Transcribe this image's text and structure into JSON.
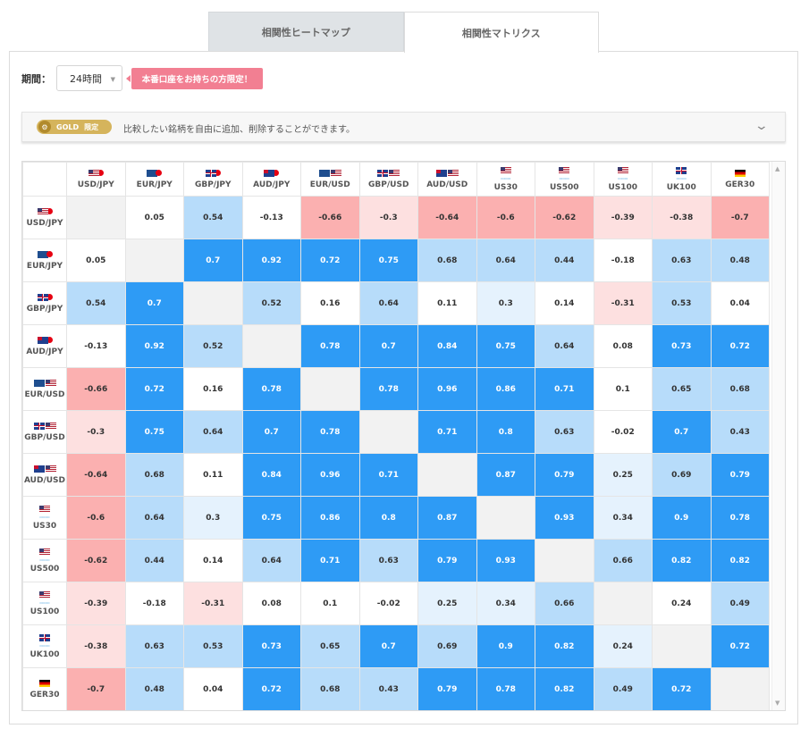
{
  "tabs": [
    {
      "label": "相関性ヒートマップ",
      "active": false
    },
    {
      "label": "相関性マトリクス",
      "active": true
    }
  ],
  "period": {
    "label": "期間：",
    "value": "24時間"
  },
  "promo": {
    "label": "本番口座をお持ちの方限定！"
  },
  "gold": {
    "badge": "GOLD",
    "badge_sub": "限定",
    "text": "比較したい銘柄を自由に追加、削除することができます。"
  },
  "colors": {
    "strong_positive": "#2e9bf5",
    "positive": "#b7dcfa",
    "weak_positive": "#e5f2fd",
    "neutral": "#ffffff",
    "weak_negative": "#fde0e0",
    "negative": "#fbb0b0",
    "self": "#f2f2f2",
    "promo": "#f27f92",
    "gold": "#d5b45c"
  },
  "matrix": {
    "symbols": [
      {
        "label": "USD/JPY",
        "flags": [
          "us",
          "jp"
        ]
      },
      {
        "label": "EUR/JPY",
        "flags": [
          "eu",
          "jp"
        ]
      },
      {
        "label": "GBP/JPY",
        "flags": [
          "gb",
          "jp"
        ]
      },
      {
        "label": "AUD/JPY",
        "flags": [
          "au",
          "jp"
        ]
      },
      {
        "label": "EUR/USD",
        "flags": [
          "eu",
          "us"
        ]
      },
      {
        "label": "GBP/USD",
        "flags": [
          "gb",
          "us"
        ]
      },
      {
        "label": "AUD/USD",
        "flags": [
          "au",
          "us"
        ]
      },
      {
        "label": "US30",
        "flags": [
          "us"
        ],
        "index": true
      },
      {
        "label": "US500",
        "flags": [
          "us"
        ],
        "index": true
      },
      {
        "label": "US100",
        "flags": [
          "us"
        ],
        "index": true
      },
      {
        "label": "UK100",
        "flags": [
          "gb"
        ],
        "index": true
      },
      {
        "label": "GER30",
        "flags": [
          "de"
        ],
        "index": false
      }
    ],
    "values": [
      [
        null,
        0.05,
        0.54,
        -0.13,
        -0.66,
        -0.3,
        -0.64,
        -0.6,
        -0.62,
        -0.39,
        -0.38,
        -0.7
      ],
      [
        0.05,
        null,
        0.7,
        0.92,
        0.72,
        0.75,
        0.68,
        0.64,
        0.44,
        -0.18,
        0.63,
        0.48
      ],
      [
        0.54,
        0.7,
        null,
        0.52,
        0.16,
        0.64,
        0.11,
        0.3,
        0.14,
        -0.31,
        0.53,
        0.04
      ],
      [
        -0.13,
        0.92,
        0.52,
        null,
        0.78,
        0.7,
        0.84,
        0.75,
        0.64,
        0.08,
        0.73,
        0.72
      ],
      [
        -0.66,
        0.72,
        0.16,
        0.78,
        null,
        0.78,
        0.96,
        0.86,
        0.71,
        0.1,
        0.65,
        0.68
      ],
      [
        -0.3,
        0.75,
        0.64,
        0.7,
        0.78,
        null,
        0.71,
        0.8,
        0.63,
        -0.02,
        0.7,
        0.43
      ],
      [
        -0.64,
        0.68,
        0.11,
        0.84,
        0.96,
        0.71,
        null,
        0.87,
        0.79,
        0.25,
        0.69,
        0.79
      ],
      [
        -0.6,
        0.64,
        0.3,
        0.75,
        0.86,
        0.8,
        0.87,
        null,
        0.93,
        0.34,
        0.9,
        0.78
      ],
      [
        -0.62,
        0.44,
        0.14,
        0.64,
        0.71,
        0.63,
        0.79,
        0.93,
        null,
        0.66,
        0.82,
        0.82
      ],
      [
        -0.39,
        -0.18,
        -0.31,
        0.08,
        0.1,
        -0.02,
        0.25,
        0.34,
        0.66,
        null,
        0.24,
        0.49
      ],
      [
        -0.38,
        0.63,
        0.53,
        0.73,
        0.65,
        0.7,
        0.69,
        0.9,
        0.82,
        0.24,
        null,
        0.72
      ],
      [
        -0.7,
        0.48,
        0.04,
        0.72,
        0.68,
        0.43,
        0.79,
        0.78,
        0.82,
        0.49,
        0.72,
        null
      ]
    ],
    "cell_classes": [
      [
        "self",
        "neutral",
        "pos",
        "neutral",
        "neg",
        "weak-neg",
        "neg",
        "neg",
        "neg",
        "weak-neg",
        "weak-neg",
        "neg"
      ],
      [
        "neutral",
        "self",
        "strong-pos",
        "strong-pos",
        "strong-pos",
        "strong-pos",
        "pos",
        "pos",
        "pos",
        "neutral",
        "pos",
        "pos"
      ],
      [
        "pos",
        "strong-pos",
        "self",
        "pos",
        "neutral",
        "pos",
        "neutral",
        "weak-pos",
        "neutral",
        "weak-neg",
        "pos",
        "neutral"
      ],
      [
        "neutral",
        "strong-pos",
        "pos",
        "self",
        "strong-pos",
        "strong-pos",
        "strong-pos",
        "strong-pos",
        "pos",
        "neutral",
        "strong-pos",
        "strong-pos"
      ],
      [
        "neg",
        "strong-pos",
        "neutral",
        "strong-pos",
        "self",
        "strong-pos",
        "strong-pos",
        "strong-pos",
        "strong-pos",
        "neutral",
        "pos",
        "pos"
      ],
      [
        "weak-neg",
        "strong-pos",
        "pos",
        "strong-pos",
        "strong-pos",
        "self",
        "strong-pos",
        "strong-pos",
        "pos",
        "neutral",
        "strong-pos",
        "pos"
      ],
      [
        "neg",
        "pos",
        "neutral",
        "strong-pos",
        "strong-pos",
        "strong-pos",
        "self",
        "strong-pos",
        "strong-pos",
        "weak-pos",
        "pos",
        "strong-pos"
      ],
      [
        "neg",
        "pos",
        "weak-pos",
        "strong-pos",
        "strong-pos",
        "strong-pos",
        "strong-pos",
        "self",
        "strong-pos",
        "weak-pos",
        "strong-pos",
        "strong-pos"
      ],
      [
        "neg",
        "pos",
        "neutral",
        "pos",
        "strong-pos",
        "pos",
        "strong-pos",
        "strong-pos",
        "self",
        "pos",
        "strong-pos",
        "strong-pos"
      ],
      [
        "weak-neg",
        "neutral",
        "weak-neg",
        "neutral",
        "neutral",
        "neutral",
        "weak-pos",
        "weak-pos",
        "pos",
        "self",
        "neutral",
        "pos"
      ],
      [
        "weak-neg",
        "pos",
        "pos",
        "strong-pos",
        "pos",
        "strong-pos",
        "pos",
        "strong-pos",
        "strong-pos",
        "weak-pos",
        "self",
        "strong-pos"
      ],
      [
        "neg",
        "pos",
        "neutral",
        "strong-pos",
        "pos",
        "pos",
        "strong-pos",
        "strong-pos",
        "strong-pos",
        "pos",
        "strong-pos",
        "self"
      ]
    ]
  }
}
